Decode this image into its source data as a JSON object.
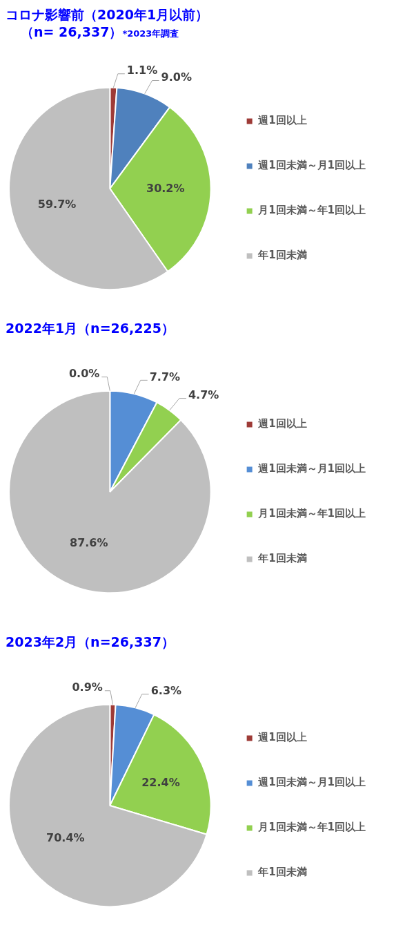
{
  "chart_data": [
    {
      "type": "pie",
      "title": "コロナ影響前（2020年1月以前）",
      "subtitle": "（n= 26,337）",
      "annotations": [
        "*2023年調査"
      ],
      "categories": [
        "週1回以上",
        "週1回未満～月1回以上",
        "月1回未満～年1回以上",
        "年1回未満"
      ],
      "values": [
        1.1,
        9.0,
        30.2,
        59.7
      ],
      "value_labels": [
        "1.1%",
        "9.0%",
        "30.2%",
        "59.7%"
      ],
      "colors": [
        "#9e3b37",
        "#4f81bd",
        "#92d050",
        "#bfbfbf"
      ],
      "legend": "right"
    },
    {
      "type": "pie",
      "title": "2022年1月（n=26,225）",
      "categories": [
        "週1回以上",
        "週1回未満～月1回以上",
        "月1回未満～年1回以上",
        "年1回未満"
      ],
      "values": [
        0.0,
        7.7,
        4.7,
        87.6
      ],
      "value_labels": [
        "0.0%",
        "7.7%",
        "4.7%",
        "87.6%"
      ],
      "colors": [
        "#9e3b37",
        "#558ed5",
        "#92d050",
        "#bfbfbf"
      ],
      "legend": "right"
    },
    {
      "type": "pie",
      "title": "2023年2月（n=26,337）",
      "categories": [
        "週1回以上",
        "週1回未満～月1回以上",
        "月1回未満～年1回以上",
        "年1回未満"
      ],
      "values": [
        0.9,
        6.3,
        22.4,
        70.4
      ],
      "value_labels": [
        "0.9%",
        "6.3%",
        "22.4%",
        "70.4%"
      ],
      "colors": [
        "#9e3b37",
        "#558ed5",
        "#92d050",
        "#bfbfbf"
      ],
      "legend": "right"
    }
  ]
}
